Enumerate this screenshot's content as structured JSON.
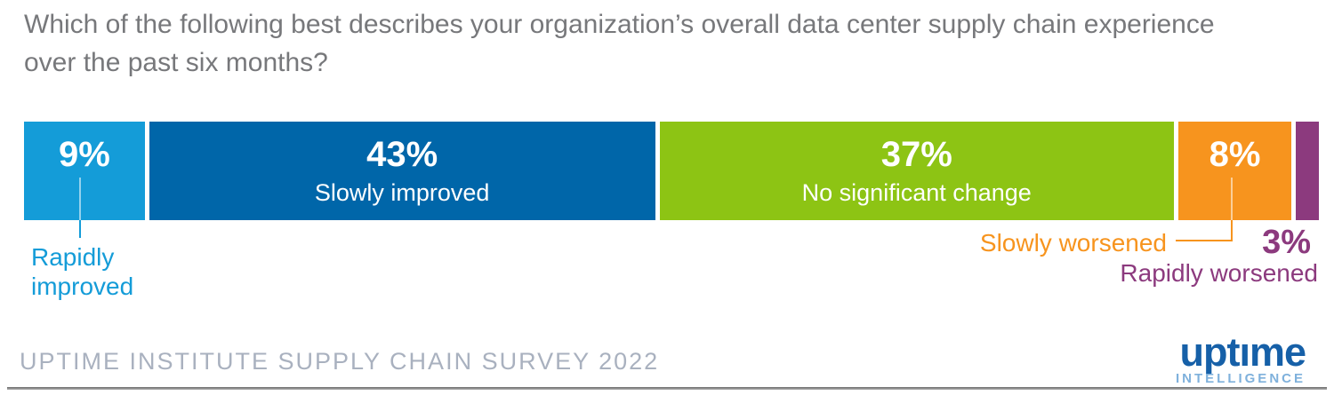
{
  "title": "Which of the following best describes your organization’s overall data center supply chain experience over the past six months?",
  "chart_data": {
    "type": "bar",
    "variant": "horizontal-stacked-100-percent",
    "title": "Which of the following best describes your organization’s overall data center supply chain experience over the past six months?",
    "unit": "%",
    "xlim": [
      0,
      100
    ],
    "categories": [
      "Rapidly improved",
      "Slowly improved",
      "No significant change",
      "Slowly worsened",
      "Rapidly worsened"
    ],
    "values": [
      9,
      43,
      37,
      8,
      3
    ],
    "segments": [
      {
        "label": "Rapidly improved",
        "value": 9,
        "value_label": "9%",
        "color": "#149CD8",
        "label_position": "callout-below-left"
      },
      {
        "label": "Slowly improved",
        "value": 43,
        "value_label": "43%",
        "color": "#0066A9",
        "label_position": "inside"
      },
      {
        "label": "No significant change",
        "value": 37,
        "value_label": "37%",
        "color": "#8DC414",
        "label_position": "inside"
      },
      {
        "label": "Slowly worsened",
        "value": 8,
        "value_label": "8%",
        "color": "#F7941E",
        "label_position": "callout-below"
      },
      {
        "label": "Rapidly worsened",
        "value": 3,
        "value_label": "3%",
        "color": "#8C3A7E",
        "label_position": "callout-below-right"
      }
    ],
    "legend_position": "labels-inside-segments-with-callouts",
    "grid": false
  },
  "callouts": {
    "rapidly_improved_label": "Rapidly improved",
    "slowly_worsened_label": "Slowly worsened",
    "rapidly_worsened_value": "3%",
    "rapidly_worsened_label": "Rapidly worsened"
  },
  "footer": {
    "source": "UPTIME INSTITUTE SUPPLY CHAIN SURVEY 2022"
  },
  "logo": {
    "brand": "uptıme",
    "sub_brand": "INTELLIGENCE"
  },
  "colors": {
    "title_text": "#77787B",
    "rapidly_improved": "#149CD8",
    "slowly_improved": "#0066A9",
    "no_significant_change": "#8DC414",
    "slowly_worsened": "#F7941E",
    "rapidly_worsened": "#8C3A7E",
    "bar_value_text": "#FFFFFF",
    "footer_text": "#A9B1BF",
    "logo_primary": "#1660A8",
    "logo_secondary": "#7FB1DC"
  }
}
